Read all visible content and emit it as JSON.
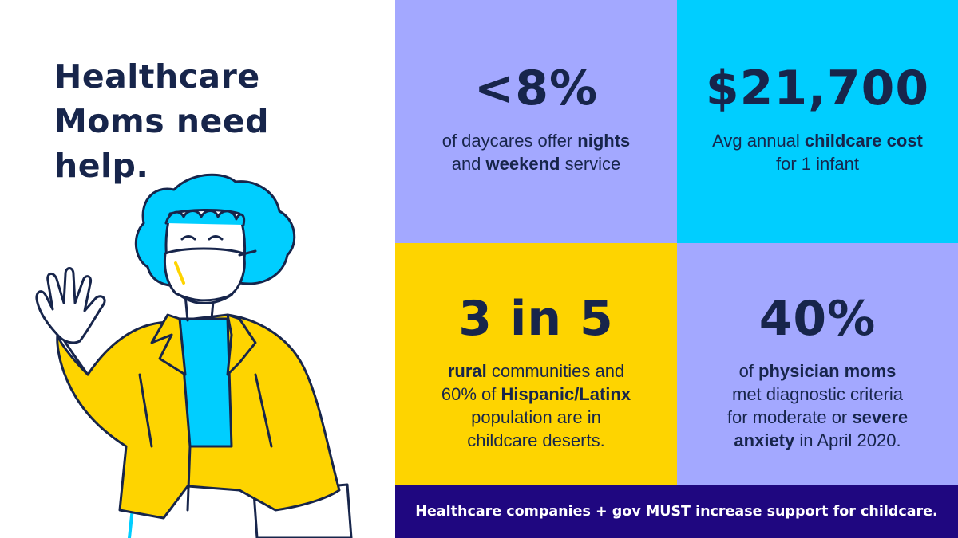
{
  "headline": {
    "line1": "Healthcare",
    "line2": "Moms need",
    "line3": "help."
  },
  "illustration": {
    "icon": "waving-masked-healthcare-worker-illustration"
  },
  "tiles": [
    {
      "stat": "<8%",
      "desc_parts": [
        "of daycares offer ",
        "nights",
        " and ",
        "weekend",
        " service"
      ]
    },
    {
      "stat": "$21,700",
      "desc_parts": [
        "Avg annual ",
        "childcare cost",
        " for 1 infant"
      ]
    },
    {
      "stat": "3 in 5",
      "desc_parts": [
        "rural",
        " communities and 60% of ",
        "Hispanic/Latinx",
        " population are in childcare deserts."
      ]
    },
    {
      "stat": "40%",
      "desc_parts": [
        "of ",
        "physician moms",
        " met diagnostic criteria for moderate or ",
        "severe anxiety",
        " in April 2020."
      ]
    }
  ],
  "footer": {
    "text": "Healthcare companies + gov MUST increase support for childcare."
  },
  "colors": {
    "navy_text": "#17254b",
    "lavender": "#a3a8ff",
    "cyan": "#00ceff",
    "yellow": "#fed400",
    "footer_purple": "#1f0780"
  }
}
